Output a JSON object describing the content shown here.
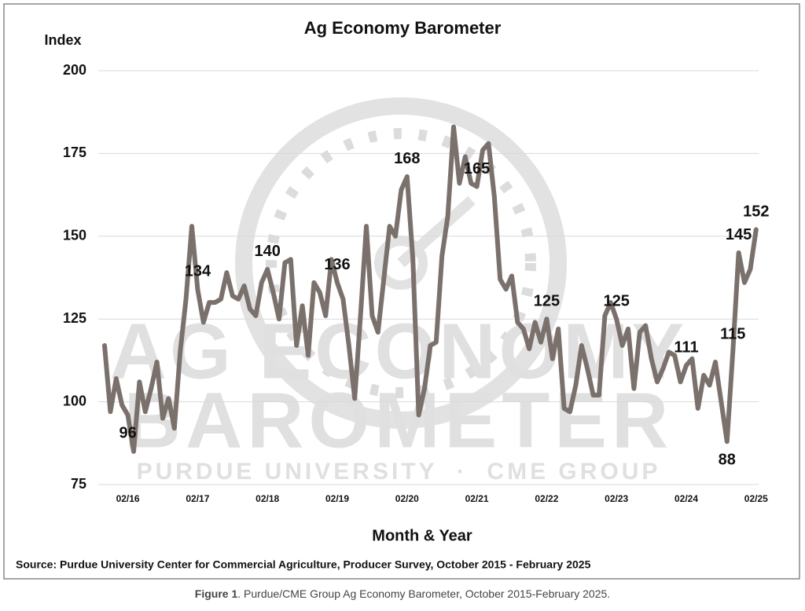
{
  "chart_data": {
    "type": "line",
    "title": "Ag Economy Barometer",
    "ylabel": "Index",
    "xlabel": "Month & Year",
    "source": "Source: Purdue University Center for Commercial Agriculture, Producer Survey, October 2015 - February 2025",
    "caption_label": "Figure 1",
    "caption_text": ". Purdue/CME Group Ag Economy Barometer, October 2015-February 2025.",
    "watermark": [
      "AG ECONOMY",
      "BAROMETER",
      "PURDUE UNIVERSITY  ·  CME GROUP"
    ],
    "ylim": [
      75,
      200
    ],
    "yticks": [
      75,
      100,
      125,
      150,
      175,
      200
    ],
    "grid": true,
    "categories": [
      null,
      null,
      null,
      null,
      "02/16",
      null,
      null,
      null,
      null,
      null,
      null,
      null,
      null,
      null,
      null,
      null,
      "02/17",
      null,
      null,
      null,
      null,
      null,
      null,
      null,
      null,
      null,
      null,
      null,
      "02/18",
      null,
      null,
      null,
      null,
      null,
      null,
      null,
      null,
      null,
      null,
      null,
      "02/19",
      null,
      null,
      null,
      null,
      null,
      null,
      null,
      null,
      null,
      null,
      null,
      "02/20",
      null,
      null,
      null,
      null,
      null,
      null,
      null,
      null,
      null,
      null,
      null,
      "02/21",
      null,
      null,
      null,
      null,
      null,
      null,
      null,
      null,
      null,
      null,
      null,
      "02/22",
      null,
      null,
      null,
      null,
      null,
      null,
      null,
      null,
      null,
      null,
      null,
      "02/23",
      null,
      null,
      null,
      null,
      null,
      null,
      null,
      null,
      null,
      null,
      null,
      "02/24",
      null,
      null,
      null,
      null,
      null,
      null,
      null,
      null,
      null,
      null,
      null,
      "02/25"
    ],
    "series": [
      {
        "color": "#7b716c",
        "values": [
          117,
          97,
          107,
          99,
          96,
          85,
          106,
          97,
          104,
          112,
          95,
          101,
          92,
          115,
          131,
          153,
          134,
          124,
          130,
          130,
          131,
          139,
          132,
          131,
          135,
          128,
          126,
          136,
          140,
          133,
          125,
          142,
          143,
          117,
          129,
          114,
          136,
          133,
          126,
          143,
          136,
          131,
          117,
          101,
          126,
          153,
          126,
          121,
          137,
          153,
          150,
          164,
          168,
          143,
          96,
          104,
          117,
          118,
          144,
          156,
          183,
          166,
          174,
          166,
          165,
          176,
          178,
          162,
          137,
          134,
          138,
          124,
          122,
          116,
          124,
          118,
          125,
          113,
          122,
          98,
          97,
          105,
          117,
          110,
          102,
          102,
          126,
          130,
          125,
          117,
          122,
          104,
          121,
          123,
          113,
          106,
          110,
          115,
          114,
          106,
          111,
          113,
          98,
          108,
          105,
          112,
          100,
          88,
          115,
          145,
          136,
          140,
          152
        ],
        "value_labels": [
          null,
          null,
          null,
          null,
          "96",
          null,
          null,
          null,
          null,
          null,
          null,
          null,
          null,
          null,
          null,
          null,
          "134",
          null,
          null,
          null,
          null,
          null,
          null,
          null,
          null,
          null,
          null,
          null,
          "140",
          null,
          null,
          null,
          null,
          null,
          null,
          null,
          null,
          null,
          null,
          null,
          "136",
          null,
          null,
          null,
          null,
          null,
          null,
          null,
          null,
          null,
          null,
          null,
          "168",
          null,
          null,
          null,
          null,
          null,
          null,
          null,
          null,
          null,
          null,
          null,
          "165",
          null,
          null,
          null,
          null,
          null,
          null,
          null,
          null,
          null,
          null,
          null,
          "125",
          null,
          null,
          null,
          null,
          null,
          null,
          null,
          null,
          null,
          null,
          null,
          "125",
          null,
          null,
          null,
          null,
          null,
          null,
          null,
          null,
          null,
          null,
          null,
          "111",
          null,
          null,
          null,
          null,
          null,
          null,
          "88",
          "115",
          "145",
          null,
          null,
          "152"
        ]
      }
    ]
  }
}
